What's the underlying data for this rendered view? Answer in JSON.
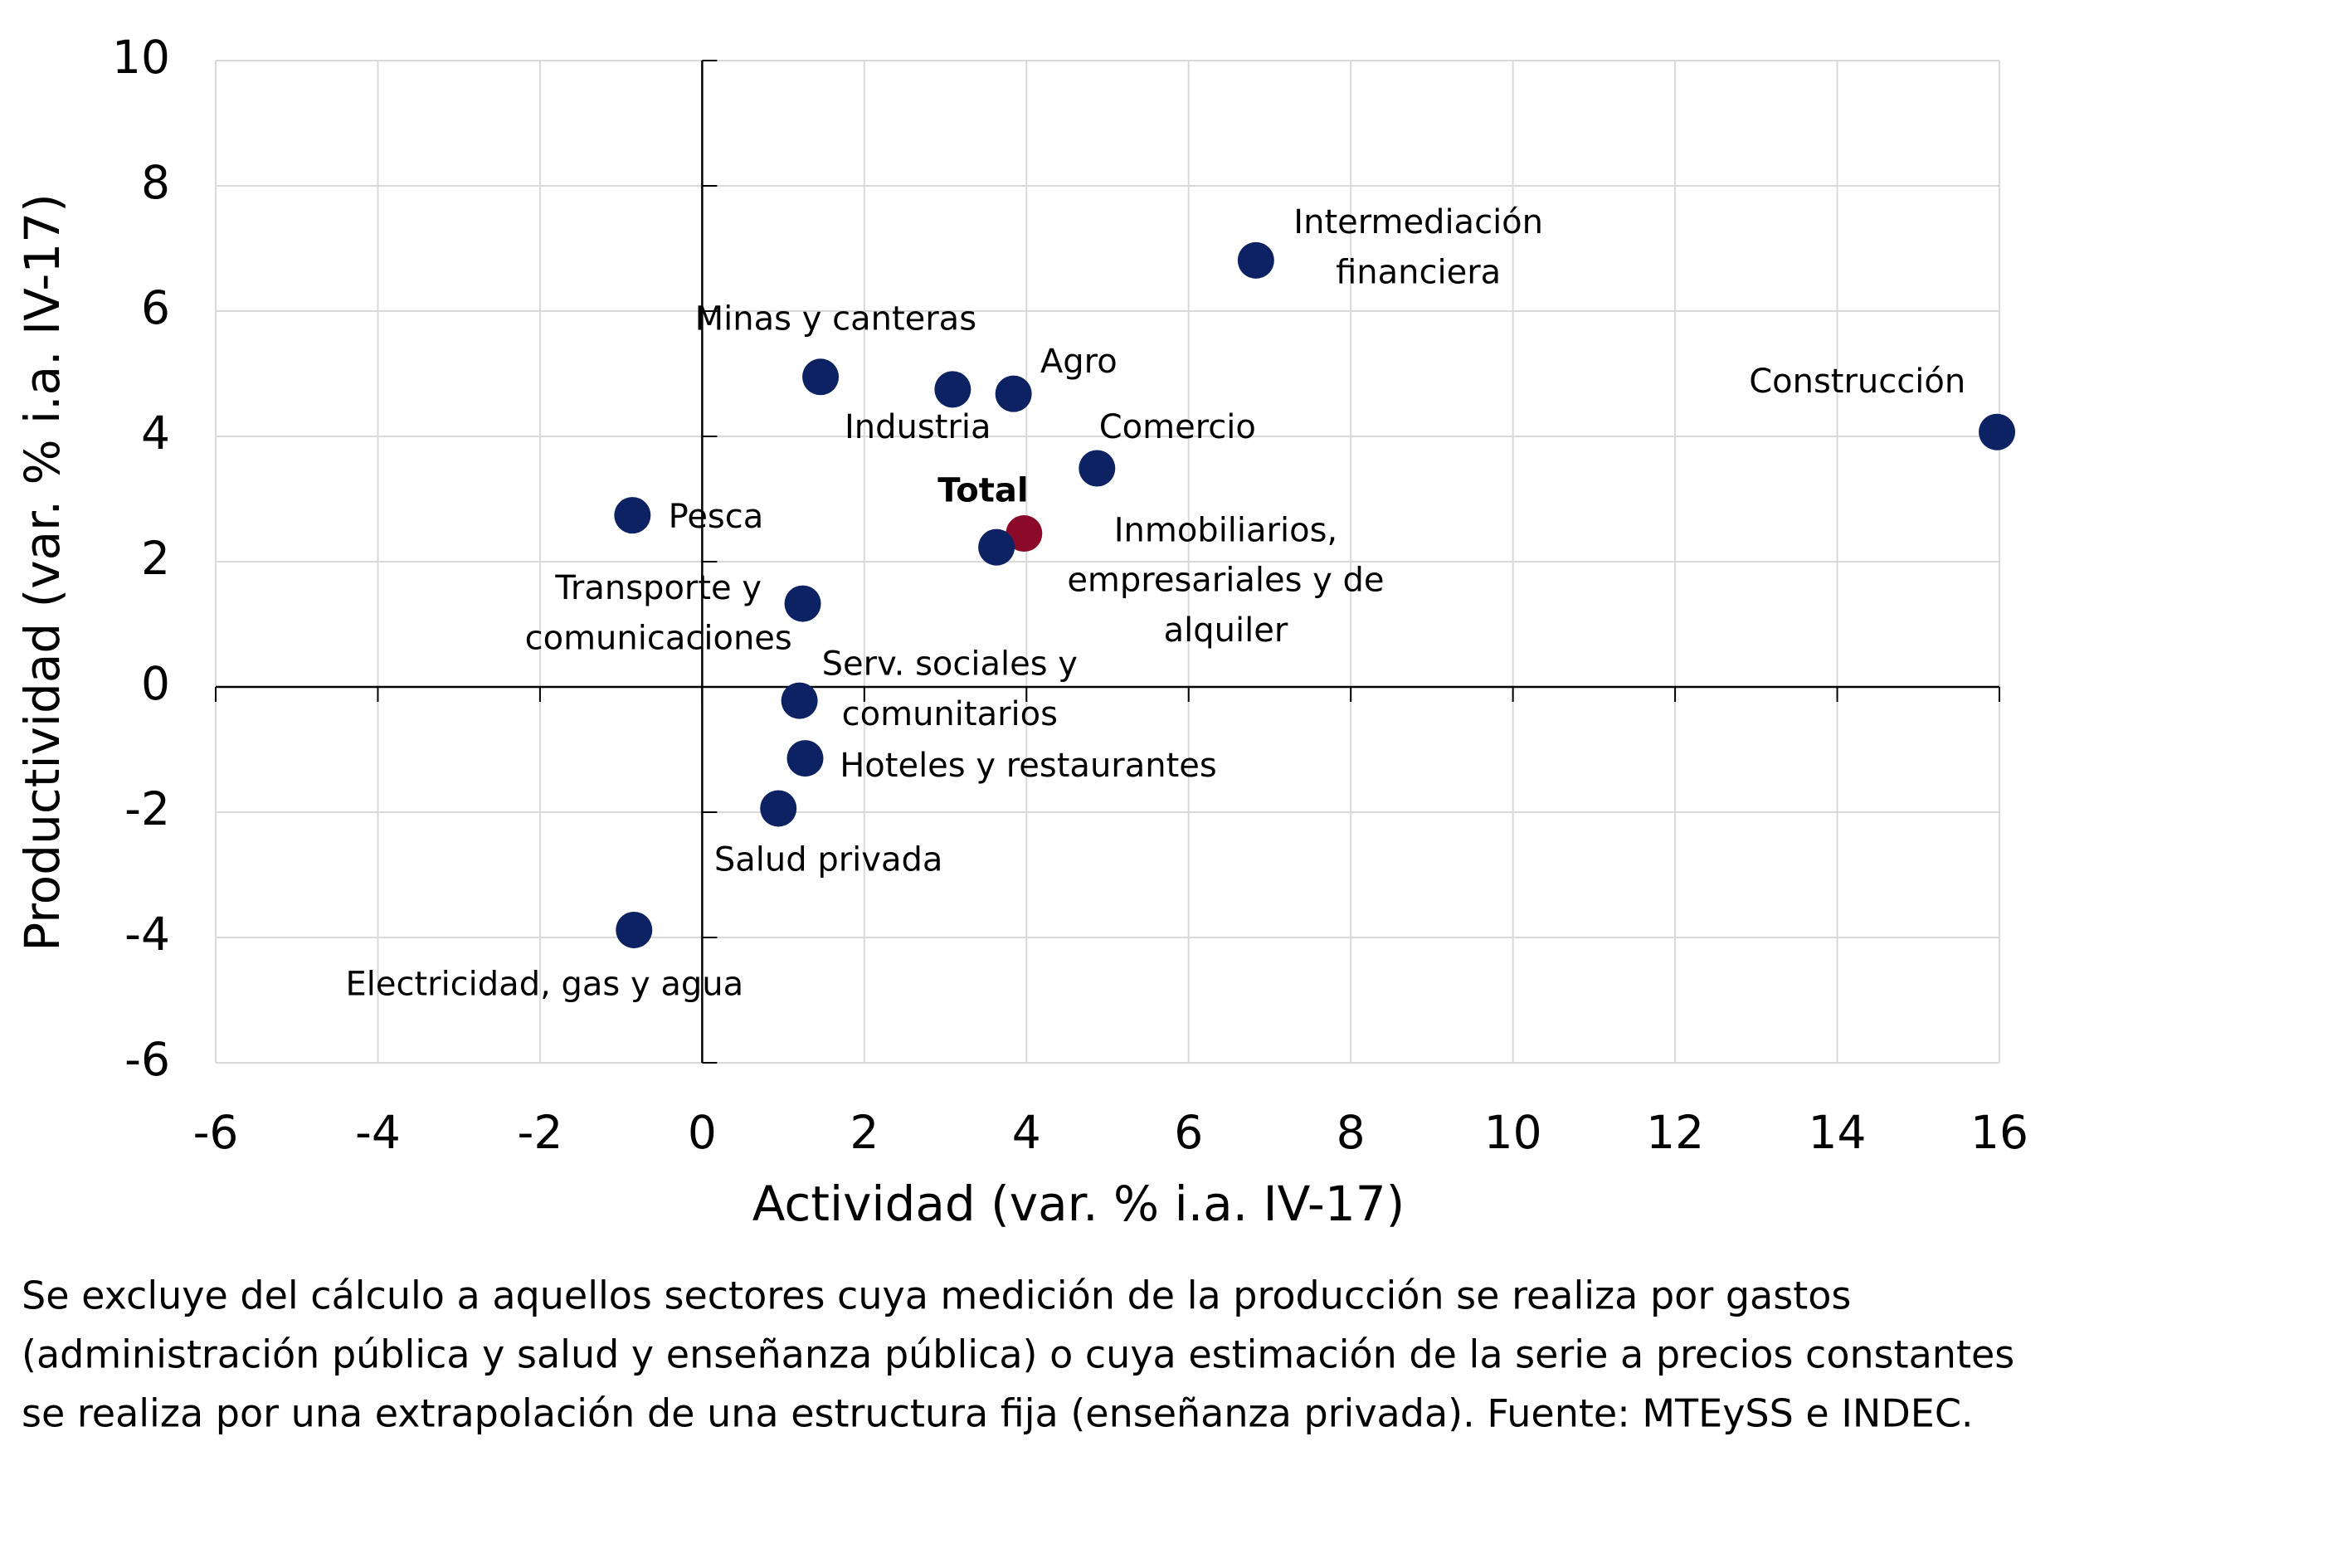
{
  "chart_data": {
    "type": "scatter",
    "x_label": "Actividad (var. % i.a. IV-17)",
    "y_label": "Productividad (var. % i.a. IV-17)",
    "xlim": [
      -6,
      16
    ],
    "xticks": [
      -6,
      -4,
      -2,
      0,
      2,
      4,
      6,
      8,
      10,
      12,
      14,
      16
    ],
    "ylim": [
      -6,
      10
    ],
    "yticks": [
      -6,
      -4,
      -2,
      0,
      2,
      4,
      6,
      8,
      10
    ],
    "grid": true,
    "points": [
      {
        "label": [
          "Intermediación",
          "financiera"
        ],
        "x": 6.83,
        "y": 6.81,
        "color": "#0d2263"
      },
      {
        "label": [
          "Construcción"
        ],
        "x": 15.97,
        "y": 4.07,
        "color": "#0d2263"
      },
      {
        "label": [
          "Minas y canteras"
        ],
        "x": 1.46,
        "y": 4.95,
        "color": "#0d2263"
      },
      {
        "label": [
          "Industria"
        ],
        "x": 3.09,
        "y": 4.75,
        "color": "#0d2263"
      },
      {
        "label": [
          "Agro"
        ],
        "x": 3.84,
        "y": 4.68,
        "color": "#0d2263"
      },
      {
        "label": [
          "Comercio"
        ],
        "x": 4.87,
        "y": 3.49,
        "color": "#0d2263"
      },
      {
        "label": [
          "Pesca"
        ],
        "x": -0.86,
        "y": 2.74,
        "color": "#0d2263"
      },
      {
        "label": [
          "Total"
        ],
        "x": 3.97,
        "y": 2.45,
        "color": "#8b0a2a"
      },
      {
        "label": [
          "Inmobiliarios,",
          "empresariales y de",
          "alquiler"
        ],
        "x": 3.63,
        "y": 2.23,
        "color": "#0d2263"
      },
      {
        "label": [
          "Transporte y",
          "comunicaciones"
        ],
        "x": 1.24,
        "y": 1.33,
        "color": "#0d2263"
      },
      {
        "label": [
          "Serv. sociales y",
          "comunitarios"
        ],
        "x": 1.2,
        "y": -0.22,
        "color": "#0d2263"
      },
      {
        "label": [
          "Hoteles y restaurantes"
        ],
        "x": 1.27,
        "y": -1.14,
        "color": "#0d2263"
      },
      {
        "label": [
          "Salud privada"
        ],
        "x": 0.94,
        "y": -1.94,
        "color": "#0d2263"
      },
      {
        "label": [
          "Electricidad, gas y agua"
        ],
        "x": -0.84,
        "y": -3.88,
        "color": "#0d2263"
      }
    ],
    "note": [
      "Se excluye del cálculo a aquellos sectores cuya medición de la producción se realiza por gastos",
      "(administración pública y salud y enseñanza pública) o cuya estimación de la serie a precios constantes",
      "se realiza por una extrapolación de una estructura fija (enseñanza privada). Fuente: MTEySS e INDEC."
    ]
  }
}
